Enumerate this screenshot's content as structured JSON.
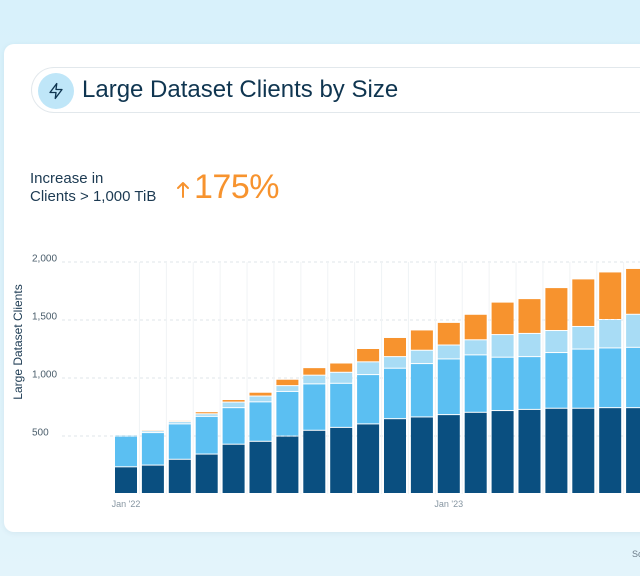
{
  "title": "Large Dataset Clients by Size",
  "kpi": {
    "label_line1": "Increase in",
    "label_line2": "Clients > 1,000 TiB",
    "value": "175%"
  },
  "footer_note": "So",
  "icons": {
    "title_icon": "lightning-bolt-icon",
    "kpi_icon": "arrow-up-icon"
  },
  "colors": {
    "series1": "#0a4f80",
    "series2": "#5bbff2",
    "series3": "#a8dcf5",
    "series4": "#f7932e",
    "accent": "#f7932e"
  },
  "chart_data": {
    "type": "bar",
    "stacked": true,
    "ylabel": "Large Dataset Clients",
    "xlabel": "",
    "ylim": [
      0,
      2000
    ],
    "yticks": [
      500,
      1000,
      1500,
      2000
    ],
    "ytick_labels": [
      "500",
      "1,000",
      "1,500",
      "2,000"
    ],
    "x_tick_labels": [
      {
        "label": "Jan '22",
        "index": 0
      },
      {
        "label": "Jan '23",
        "index": 12
      }
    ],
    "grid": true,
    "series": [
      {
        "values": [
          230,
          245,
          295,
          340,
          425,
          450,
          495,
          545,
          570,
          600,
          645,
          660,
          680,
          700,
          715,
          725,
          735,
          735,
          740,
          740
        ]
      },
      {
        "values": [
          265,
          280,
          305,
          325,
          315,
          340,
          385,
          400,
          380,
          425,
          435,
          460,
          480,
          495,
          460,
          455,
          480,
          510,
          515,
          520
        ]
      },
      {
        "values": [
          12,
          15,
          20,
          22,
          48,
          50,
          50,
          75,
          95,
          110,
          100,
          115,
          120,
          130,
          195,
          200,
          190,
          195,
          245,
          285
        ]
      },
      {
        "values": [
          8,
          10,
          10,
          18,
          22,
          33,
          55,
          65,
          80,
          115,
          165,
          175,
          195,
          220,
          280,
          300,
          370,
          410,
          410,
          395
        ]
      }
    ]
  }
}
